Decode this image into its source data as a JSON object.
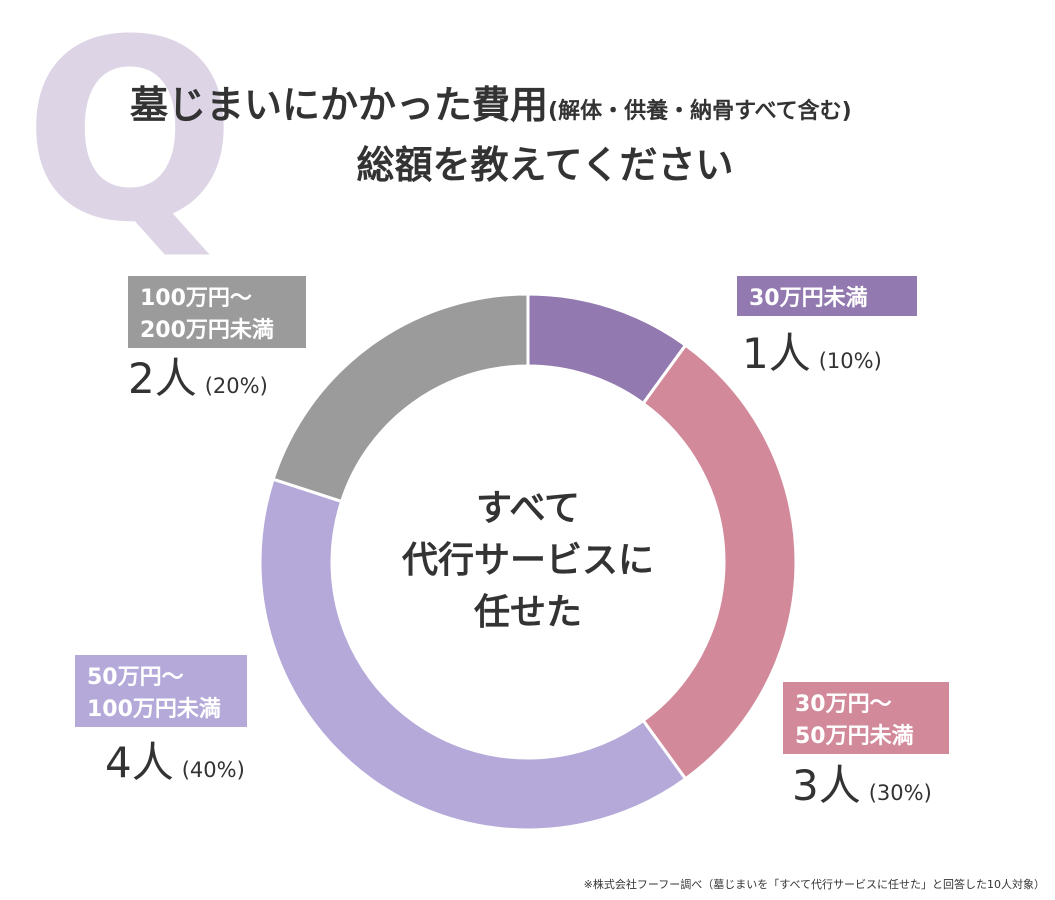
{
  "chart_data": {
    "type": "donut",
    "mark": "Q",
    "title": "墓じまいにかかった費用",
    "title_note": "(解体・供養・納骨すべて含む)",
    "subtitle": "総額を教えてください",
    "center_text": [
      "すべて",
      "代行サービスに",
      "任せた"
    ],
    "categories": [
      [
        "30万円未満"
      ],
      [
        "30万円〜",
        "50万円未満"
      ],
      [
        "50万円〜",
        "100万円未満"
      ],
      [
        "100万円〜",
        "200万円未満"
      ]
    ],
    "values": [
      1,
      3,
      4,
      2
    ],
    "value_labels": [
      "1人",
      "3人",
      "4人",
      "2人"
    ],
    "percent_labels": [
      "(10%)",
      "(30%)",
      "(40%)",
      "(20%)"
    ],
    "colors": [
      "#9279b0",
      "#d28a9b",
      "#b4a9d9",
      "#9b9b9b"
    ],
    "footnote": "※株式会社フーフー調べ（墓じまいを「すべて代行サービスに任せた」と回答した10人対象）"
  }
}
